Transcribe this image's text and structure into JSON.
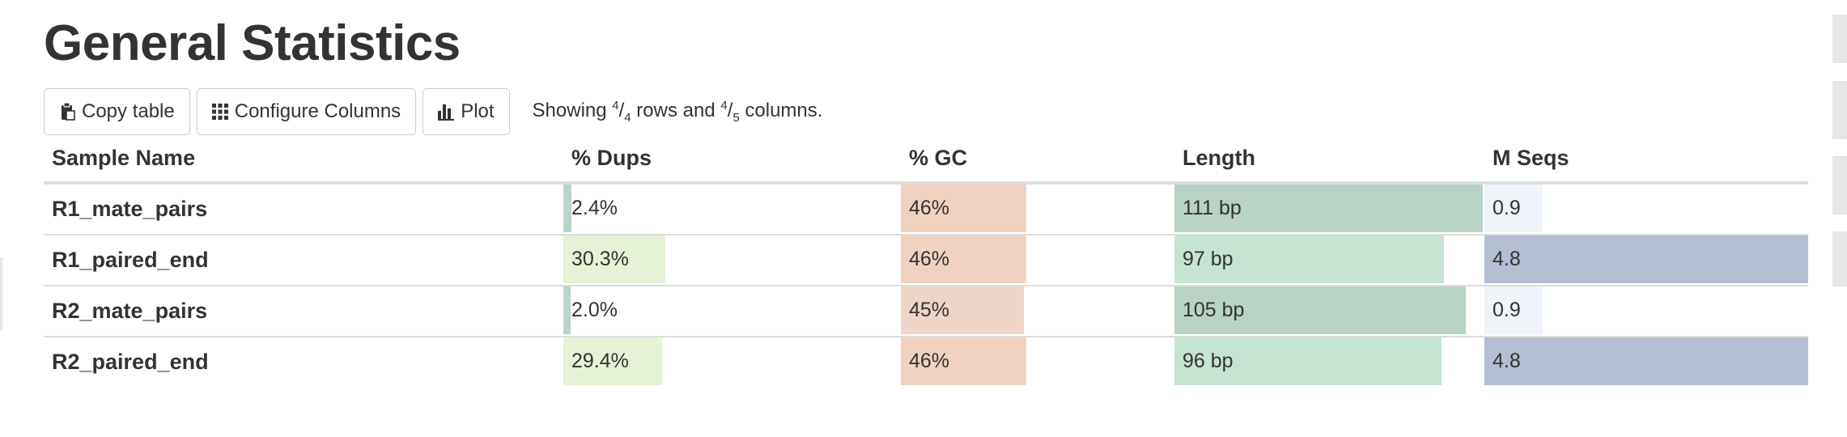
{
  "page": {
    "title": "General Statistics"
  },
  "toolbar": {
    "copy_label": "Copy table",
    "configure_label": "Configure Columns",
    "plot_label": "Plot",
    "showing": {
      "prefix": "Showing ",
      "rows_shown": "4",
      "rows_total": "4",
      "mid": " rows and ",
      "cols_shown": "4",
      "cols_total": "5",
      "suffix": " columns."
    }
  },
  "table": {
    "headers": {
      "sample": "Sample Name",
      "dups": "% Dups",
      "gc": "% GC",
      "length": "Length",
      "mseqs": "M Seqs"
    },
    "colors": {
      "dups": [
        "#b9d4c8",
        "#e5f2d6",
        "#b9d4c8",
        "#e5f2d6"
      ],
      "gc": [
        "#f1d2c0",
        "#f1d2c0",
        "#efd4c8",
        "#f1d2c0"
      ],
      "length": [
        "#b8d3c4",
        "#c5e4d2",
        "#b8d3c4",
        "#c5e4d2"
      ],
      "mseqs": [
        "#eef4fa",
        "#b3bed2",
        "#eef4fa",
        "#b3bed2"
      ]
    },
    "rows": [
      {
        "name": "R1_mate_pairs",
        "dups": "2.4%",
        "dups_frac": 0.024,
        "gc": "46%",
        "gc_frac": 0.46,
        "length": "111 bp",
        "length_frac": 1.0,
        "mseqs": "0.9",
        "mseqs_frac": 0.18
      },
      {
        "name": "R1_paired_end",
        "dups": "30.3%",
        "dups_frac": 0.303,
        "gc": "46%",
        "gc_frac": 0.46,
        "length": "97 bp",
        "length_frac": 0.874,
        "mseqs": "4.8",
        "mseqs_frac": 1.0
      },
      {
        "name": "R2_mate_pairs",
        "dups": "2.0%",
        "dups_frac": 0.02,
        "gc": "45%",
        "gc_frac": 0.45,
        "length": "105 bp",
        "length_frac": 0.946,
        "mseqs": "0.9",
        "mseqs_frac": 0.18
      },
      {
        "name": "R2_paired_end",
        "dups": "29.4%",
        "dups_frac": 0.294,
        "gc": "46%",
        "gc_frac": 0.46,
        "length": "96 bp",
        "length_frac": 0.865,
        "mseqs": "4.8",
        "mseqs_frac": 1.0
      }
    ]
  }
}
